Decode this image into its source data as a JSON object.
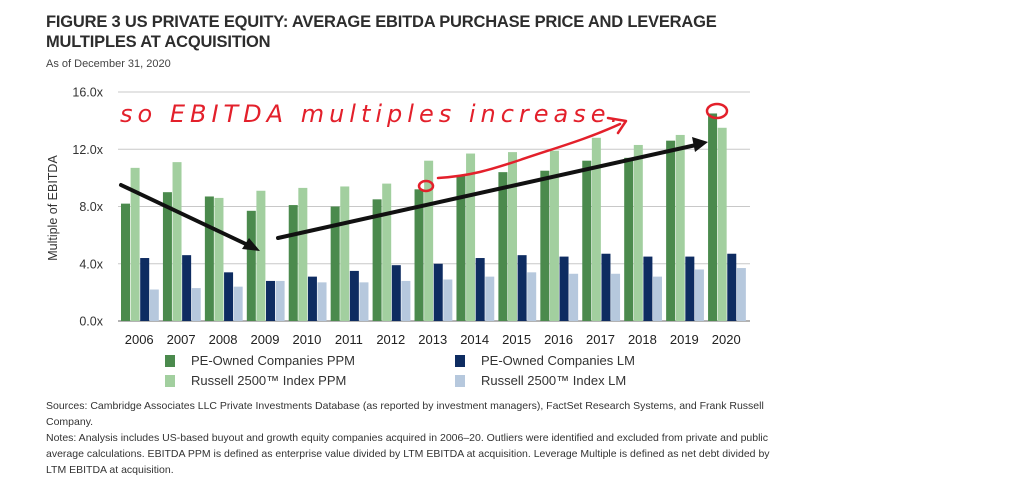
{
  "header": {
    "title_line1": "FIGURE 3 US PRIVATE EQUITY: AVERAGE EBITDA PURCHASE PRICE AND LEVERAGE",
    "title_line2": "MULTIPLES AT ACQUISITION",
    "subtitle": "As of December 31, 2020"
  },
  "annotation": {
    "text": "so EBITDA multiples increase.",
    "color": "#e3202b"
  },
  "footer": {
    "sources": "Sources: Cambridge Associates LLC Private Investments Database (as reported by investment managers), FactSet Research Systems, and Frank Russell Company.",
    "notes": "Notes: Analysis includes US-based buyout and growth equity companies acquired in 2006–20. Outliers were identified and excluded from private and public average calculations. EBITDA PPM is defined as enterprise value divided by LTM EBITDA at acquisition. Leverage Multiple is defined as net debt divided by LTM EBITDA at acquisition."
  },
  "chart_data": {
    "type": "bar",
    "title": "FIGURE 3 US PRIVATE EQUITY: AVERAGE EBITDA PURCHASE PRICE AND LEVERAGE MULTIPLES AT ACQUISITION",
    "subtitle": "As of December 31, 2020",
    "xlabel": "",
    "ylabel": "Multiple of EBITDA",
    "ylim": [
      0,
      16
    ],
    "yticks": [
      0,
      4,
      8,
      12,
      16
    ],
    "ytick_labels": [
      "0.0x",
      "4.0x",
      "8.0x",
      "12.0x",
      "16.0x"
    ],
    "grid": true,
    "legend_position": "bottom",
    "categories": [
      "2006",
      "2007",
      "2008",
      "2009",
      "2010",
      "2011",
      "2012",
      "2013",
      "2014",
      "2015",
      "2016",
      "2017",
      "2018",
      "2019",
      "2020"
    ],
    "series": [
      {
        "name": "PE-Owned Companies PPM",
        "color": "#4b8a4d",
        "values": [
          8.2,
          9.0,
          8.7,
          7.7,
          8.1,
          8.0,
          8.5,
          9.2,
          10.2,
          10.4,
          10.5,
          11.2,
          11.4,
          12.6,
          14.5
        ]
      },
      {
        "name": "Russell 2500™ Index PPM",
        "color": "#a2cf9f",
        "values": [
          10.7,
          11.1,
          8.6,
          9.1,
          9.3,
          9.4,
          9.6,
          11.2,
          11.7,
          11.8,
          11.9,
          12.8,
          12.3,
          13.0,
          13.5
        ]
      },
      {
        "name": "PE-Owned Companies LM",
        "color": "#0e2c61",
        "values": [
          4.4,
          4.6,
          3.4,
          2.8,
          3.1,
          3.5,
          3.9,
          4.0,
          4.4,
          4.6,
          4.5,
          4.7,
          4.5,
          4.5,
          4.7
        ]
      },
      {
        "name": "Russell 2500™ Index LM",
        "color": "#b6c8dd",
        "values": [
          2.2,
          2.3,
          2.4,
          2.8,
          2.7,
          2.7,
          2.8,
          2.9,
          3.1,
          3.4,
          3.3,
          3.3,
          3.1,
          3.6,
          3.7
        ]
      }
    ],
    "legend": [
      {
        "label": "PE-Owned Companies PPM",
        "color": "#4b8a4d"
      },
      {
        "label": "PE-Owned Companies LM",
        "color": "#0e2c61"
      },
      {
        "label": "Russell 2500™ Index PPM",
        "color": "#a2cf9f"
      },
      {
        "label": "Russell 2500™ Index LM",
        "color": "#b6c8dd"
      }
    ]
  }
}
